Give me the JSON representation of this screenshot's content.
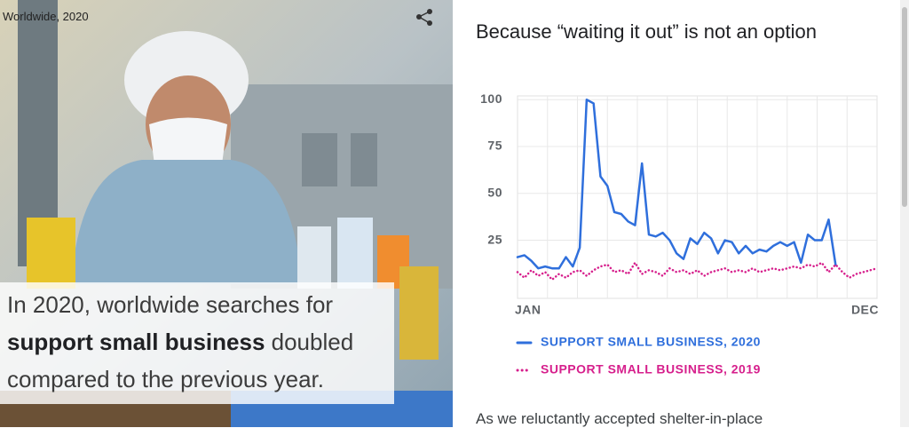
{
  "photo_caption": "Worldwide, 2020",
  "overlay": {
    "before": "In 2020, worldwide searches for",
    "bold": "support small business",
    "after": "doubled compared to the previous year."
  },
  "chart_data": {
    "type": "line",
    "title": "Because “waiting it out” is not an option",
    "categories": [
      "JAN",
      null,
      null,
      null,
      null,
      null,
      null,
      null,
      null,
      null,
      null,
      null,
      null,
      null,
      null,
      null,
      null,
      null,
      null,
      null,
      null,
      null,
      null,
      null,
      null,
      null,
      null,
      null,
      null,
      null,
      null,
      null,
      null,
      null,
      null,
      null,
      null,
      null,
      null,
      null,
      null,
      null,
      null,
      null,
      null,
      null,
      null,
      null,
      null,
      null,
      null,
      null,
      "DEC"
    ],
    "series": [
      {
        "name": "SUPPORT SMALL BUSINESS, 2020",
        "color": "#2f6fdc",
        "style": "solid",
        "values": [
          16,
          17,
          14,
          10,
          11,
          10,
          10,
          16,
          11,
          21,
          100,
          98,
          59,
          54,
          40,
          39,
          35,
          33,
          66,
          28,
          27,
          29,
          25,
          18,
          15,
          26,
          23,
          29,
          26,
          18,
          25,
          24,
          18,
          22,
          18,
          20,
          19,
          22,
          24,
          22,
          24,
          13,
          28,
          25,
          25,
          36,
          12,
          null,
          null,
          null,
          null,
          null,
          null
        ]
      },
      {
        "name": "SUPPORT SMALL BUSINESS, 2019",
        "color": "#d61f8c",
        "style": "dotted",
        "values": [
          8,
          5,
          9,
          6,
          8,
          4,
          7,
          5,
          8,
          9,
          6,
          9,
          11,
          12,
          8,
          9,
          7,
          13,
          7,
          9,
          8,
          6,
          10,
          8,
          9,
          7,
          9,
          6,
          8,
          9,
          10,
          8,
          9,
          8,
          10,
          8,
          9,
          10,
          9,
          10,
          11,
          10,
          12,
          11,
          13,
          8,
          12,
          8,
          5,
          7,
          8,
          9,
          10
        ]
      }
    ],
    "ylim": [
      -6,
      102
    ],
    "yticks": [
      25,
      50,
      75,
      100
    ],
    "grid": true
  },
  "paragraph": "As we reluctantly accepted shelter-in-place"
}
